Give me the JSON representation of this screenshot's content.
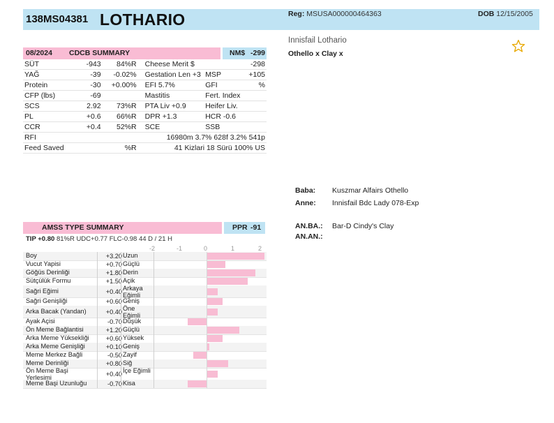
{
  "header": {
    "id": "138MS04381",
    "name": "LOTHARIO",
    "reg_label": "Reg:",
    "reg_value": "MSUSA000000464363",
    "dob_label": "DOB",
    "dob_value": "12/15/2005",
    "long_name": "Innisfail Lothario",
    "cross": "Othello x Clay x",
    "favorite_icon": "star-outline-icon",
    "colors": {
      "header_bg": "#bfe3f3",
      "pink": "#f9bcd4",
      "star": "#e8a800"
    }
  },
  "cdcb": {
    "date": "08/2024",
    "title": "CDCB SUMMARY",
    "nm_label": "NM$",
    "nm_value": "-299",
    "rows": [
      [
        "SÜT",
        "-943",
        "84%R",
        "Cheese Merit $",
        "",
        "-298"
      ],
      [
        "YAĞ",
        "-39",
        "-0.02%",
        "Gestation Len +3",
        "MSP",
        "+105"
      ],
      [
        "Protein",
        "-30",
        "+0.00%",
        "EFI  5.7%",
        "GFI",
        "%"
      ],
      [
        "CFP (lbs)",
        "-69",
        "",
        "Mastitis",
        "Fert. Index",
        ""
      ],
      [
        "SCS",
        "2.92",
        "73%R",
        "PTA Liv  +0.9",
        "Heifer Liv.",
        ""
      ],
      [
        "PL",
        "+0.6",
        "66%R",
        "DPR  +1.3",
        "HCR  -0.6",
        ""
      ],
      [
        "CCR",
        "+0.4",
        "52%R",
        "SCE",
        "SSB",
        ""
      ],
      [
        "RFI",
        "",
        "",
        "16980m  3.7%  628f  3.2%  541p",
        "",
        ""
      ],
      [
        "Feed Saved",
        "",
        "%R",
        "41  Kizlari  18  Sürü  100% US",
        "",
        ""
      ]
    ]
  },
  "pedigree": {
    "sire_label": "Baba:",
    "sire": "Kuszmar Alfairs Othello",
    "dam_label": "Anne:",
    "dam": "Innisfail Bdc Lady 078-Exp",
    "mgs_label": "AN.BA.:",
    "mgs": "Bar-D Cindy's Clay",
    "mgd_label": "AN.AN.:",
    "mgd": ""
  },
  "amss": {
    "title": "AMSS TYPE SUMMARY",
    "ppr_label": "PPR",
    "ppr_value": "-91",
    "tip_label": "TIP +0.80",
    "tip_rest": "81%R  UDC+0.77  FLC-0.98   44 D /  21 H",
    "scale": [
      "-2",
      "-1",
      "0",
      "1",
      "2"
    ],
    "traits": [
      {
        "trait": "Boy",
        "value": 3.2,
        "value_label": "+3.20",
        "desc": "Uzun"
      },
      {
        "trait": "Vucut Yapisi",
        "value": 0.7,
        "value_label": "+0.70",
        "desc": "Güçlü"
      },
      {
        "trait": "Göğüs Derinliği",
        "value": 1.8,
        "value_label": "+1.80",
        "desc": "Derin"
      },
      {
        "trait": "Sütçülük Formu",
        "value": 1.5,
        "value_label": "+1.50",
        "desc": "Açik"
      },
      {
        "trait": "Sağri Eğimi",
        "value": 0.4,
        "value_label": "+0.40",
        "desc": "Arkaya Eğimli"
      },
      {
        "trait": "Sağri Genişliği",
        "value": 0.6,
        "value_label": "+0.60",
        "desc": "Geniş"
      },
      {
        "trait": "Arka Bacak (Yandan)",
        "value": 0.4,
        "value_label": "+0.40",
        "desc": "Öne Eğimli"
      },
      {
        "trait": "Ayak Açisi",
        "value": -0.7,
        "value_label": "-0.70",
        "desc": "Düşük"
      },
      {
        "trait": "Ön Meme Bağlantisi",
        "value": 1.2,
        "value_label": "+1.20",
        "desc": "Güçlü"
      },
      {
        "trait": "Arka Meme Yüksekliği",
        "value": 0.6,
        "value_label": "+0.60",
        "desc": "Yüksek"
      },
      {
        "trait": "Arka Meme Genişliği",
        "value": 0.1,
        "value_label": "+0.10",
        "desc": "Geniş"
      },
      {
        "trait": "Meme Merkez Bağli",
        "value": -0.5,
        "value_label": "-0.50",
        "desc": "Zayif"
      },
      {
        "trait": "Meme Derinliği",
        "value": 0.8,
        "value_label": "+0.80",
        "desc": "Siğ"
      },
      {
        "trait": "Ön Meme Başi Yerleşimi",
        "value": 0.4,
        "value_label": "+0.40",
        "desc": "İçe Eğimli"
      },
      {
        "trait": "Meme Başi Uzunluğu",
        "value": -0.7,
        "value_label": "-0.70",
        "desc": "Kisa"
      }
    ]
  }
}
